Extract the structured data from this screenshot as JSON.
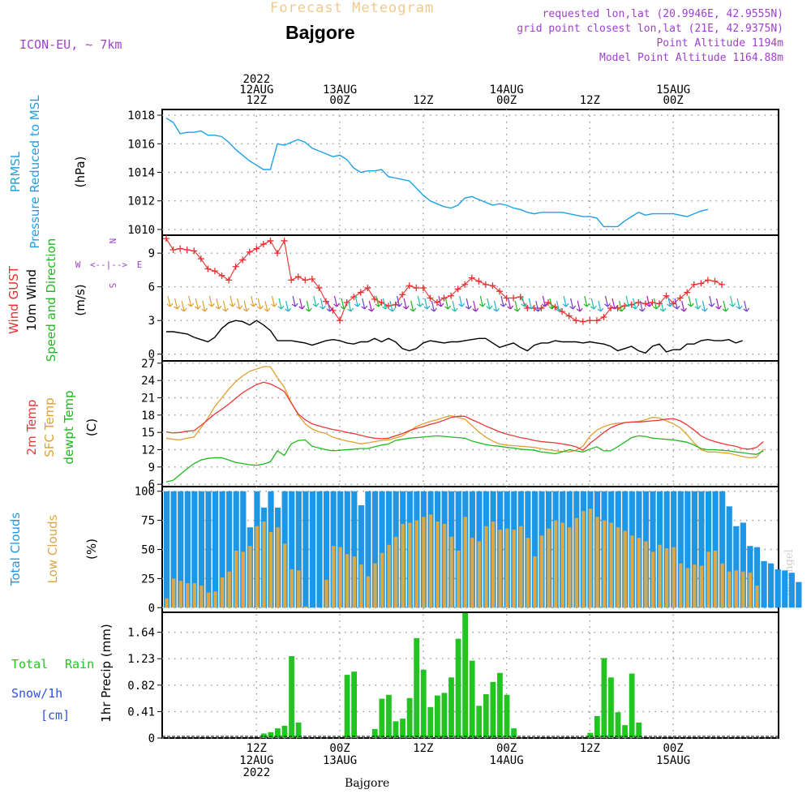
{
  "header": {
    "title": "Forecast Meteogram",
    "location": "Bajgore",
    "model": "ICON-EU, ~ 7km",
    "requested": "requested lon,lat (20.9946E, 42.9555N)",
    "grid_point": "grid point closest lon,lat (21E, 42.9375N)",
    "point_alt": "Point Altitude 1194m",
    "model_alt": "Model Point Altitude 1164.88m",
    "footer_location": "Bajgore",
    "credit": "by Angel"
  },
  "colors": {
    "pressure": "#1ea0e6",
    "gust": "#e83030",
    "wind10m": "#000000",
    "temp2m": "#e83838",
    "sfc_temp": "#e0a030",
    "dewpoint": "#20b820",
    "total_clouds": "#1e96e6",
    "low_clouds": "#d9a84a",
    "rain": "#22c422",
    "title_faint": "#f2c98a",
    "purple": "#a040d0"
  },
  "time_axis": {
    "top_labels": [
      {
        "i": 13,
        "lines": [
          "2022",
          "12AUG",
          "12Z"
        ]
      },
      {
        "i": 25,
        "lines": [
          "13AUG",
          "00Z"
        ]
      },
      {
        "i": 37,
        "lines": [
          "12Z"
        ]
      },
      {
        "i": 49,
        "lines": [
          "14AUG",
          "00Z"
        ]
      },
      {
        "i": 61,
        "lines": [
          "12Z"
        ]
      },
      {
        "i": 73,
        "lines": [
          "15AUG",
          "00Z"
        ]
      }
    ],
    "bottom_labels": [
      {
        "i": 13,
        "lines": [
          "12Z",
          "12AUG",
          "2022"
        ]
      },
      {
        "i": 25,
        "lines": [
          "00Z",
          "13AUG"
        ]
      },
      {
        "i": 37,
        "lines": [
          "12Z"
        ]
      },
      {
        "i": 49,
        "lines": [
          "00Z",
          "14AUG"
        ]
      },
      {
        "i": 61,
        "lines": [
          "12Z"
        ]
      },
      {
        "i": 73,
        "lines": [
          "00Z",
          "15AUG"
        ]
      }
    ]
  },
  "panel_labels": {
    "pressure": [
      "PRMSL",
      "Pressure Reduced to MSL",
      "(hPa)"
    ],
    "wind": [
      "Wind GUST",
      "10m Wind",
      "Speed and Direction",
      "(m/s)"
    ],
    "temp": [
      "2m Temp",
      "SFC Temp",
      "dewpt Temp",
      "(C)"
    ],
    "clouds": [
      "Total Clouds",
      "Low Clouds",
      "(%)"
    ],
    "precip": [
      "Total",
      "Rain",
      "Snow/1h",
      "[cm]",
      "1hr Precip (mm)"
    ],
    "compass": [
      "N",
      "S",
      "W",
      "E",
      "<--|-->"
    ]
  },
  "chart_data": [
    {
      "type": "line",
      "name": "pressure",
      "ylabel": "(hPa)",
      "ylim": [
        1009.6,
        1018.4
      ],
      "yticks": [
        1010,
        1012,
        1014,
        1016,
        1018
      ],
      "series": [
        {
          "name": "PRMSL",
          "color": "#1ea0e6",
          "values": [
            1017.8,
            1017.5,
            1016.7,
            1016.8,
            1016.8,
            1016.9,
            1016.6,
            1016.6,
            1016.5,
            1016.1,
            1015.6,
            1015.2,
            1014.8,
            1014.5,
            1014.2,
            1014.2,
            1016.0,
            1015.9,
            1016.1,
            1016.3,
            1016.1,
            1015.7,
            1015.5,
            1015.3,
            1015.1,
            1015.2,
            1014.9,
            1014.3,
            1014.0,
            1014.1,
            1014.1,
            1014.2,
            1013.7,
            1013.6,
            1013.5,
            1013.4,
            1012.9,
            1012.4,
            1012.0,
            1011.8,
            1011.6,
            1011.5,
            1011.7,
            1012.2,
            1012.3,
            1012.1,
            1011.9,
            1011.7,
            1011.8,
            1011.7,
            1011.5,
            1011.4,
            1011.2,
            1011.1,
            1011.2,
            1011.2,
            1011.2,
            1011.2,
            1011.1,
            1011.0,
            1010.9,
            1010.9,
            1010.8,
            1010.2,
            1010.2,
            1010.2,
            1010.6,
            1010.9,
            1011.2,
            1011.0,
            1011.1,
            1011.1,
            1011.1,
            1011.1,
            1011.0,
            1010.9,
            1011.1,
            1011.3,
            1011.4
          ]
        }
      ]
    },
    {
      "type": "line",
      "name": "wind",
      "ylabel": "(m/s)",
      "ylim": [
        -0.6,
        10.6
      ],
      "yticks": [
        0,
        3,
        6,
        9
      ],
      "series": [
        {
          "name": "Wind GUST",
          "color": "#e83030",
          "marker": "+",
          "values": [
            10.3,
            9.3,
            9.4,
            9.3,
            9.2,
            8.5,
            7.6,
            7.4,
            7.0,
            6.6,
            7.8,
            8.4,
            9.1,
            9.4,
            9.8,
            10.1,
            9.0,
            10.1,
            6.6,
            6.9,
            6.6,
            6.7,
            5.9,
            4.7,
            3.9,
            3.0,
            4.6,
            5.1,
            5.5,
            5.9,
            4.9,
            4.6,
            4.3,
            4.4,
            5.3,
            6.1,
            5.9,
            5.9,
            5.0,
            4.6,
            5.0,
            5.2,
            5.8,
            6.2,
            6.8,
            6.5,
            6.2,
            6.1,
            5.6,
            5.0,
            5.0,
            5.1,
            4.1,
            4.1,
            4.1,
            4.6,
            4.2,
            3.8,
            3.4,
            3.0,
            2.9,
            3.0,
            3.0,
            3.3,
            4.1,
            4.1,
            4.3,
            4.4,
            4.6,
            4.5,
            4.6,
            4.5,
            5.2,
            4.5,
            5.0,
            5.5,
            6.2,
            6.3,
            6.6,
            6.5,
            6.2
          ]
        },
        {
          "name": "10m Wind",
          "color": "#000000",
          "values": [
            2.0,
            2.0,
            1.9,
            1.8,
            1.5,
            1.3,
            1.1,
            1.5,
            2.3,
            2.8,
            3.0,
            2.9,
            2.6,
            3.0,
            2.6,
            2.1,
            1.2,
            1.2,
            1.2,
            1.1,
            1.0,
            0.8,
            1.0,
            1.2,
            1.3,
            1.2,
            1.0,
            0.9,
            1.1,
            1.1,
            1.4,
            1.1,
            1.4,
            1.1,
            0.5,
            0.3,
            0.5,
            1.0,
            1.2,
            1.1,
            1.0,
            1.1,
            1.1,
            1.2,
            1.3,
            1.4,
            1.4,
            1.0,
            0.6,
            0.8,
            1.0,
            0.6,
            0.3,
            0.8,
            1.0,
            1.0,
            1.2,
            1.1,
            1.1,
            1.1,
            1.0,
            1.1,
            1.0,
            0.9,
            0.7,
            0.3,
            0.5,
            0.7,
            0.3,
            0.1,
            0.7,
            0.9,
            0.2,
            0.4,
            0.4,
            0.9,
            0.9,
            1.2,
            1.3,
            1.2,
            1.2,
            1.3,
            1.0,
            1.2
          ]
        }
      ]
    },
    {
      "type": "line",
      "name": "temperature",
      "ylabel": "(C)",
      "ylim": [
        5.6,
        27.4
      ],
      "yticks": [
        6,
        9,
        12,
        15,
        18,
        21,
        24,
        27
      ],
      "series": [
        {
          "name": "2m Temp",
          "color": "#e83838",
          "values": [
            15.1,
            14.9,
            15.0,
            15.2,
            15.3,
            16.2,
            17.2,
            18.2,
            19.0,
            19.9,
            20.9,
            21.9,
            22.6,
            23.3,
            23.7,
            23.4,
            22.8,
            22.1,
            20.1,
            18.2,
            17.2,
            16.5,
            16.1,
            15.8,
            15.5,
            15.3,
            15.0,
            14.8,
            14.5,
            14.2,
            14.0,
            13.9,
            14.0,
            14.4,
            14.8,
            15.3,
            15.7,
            16.0,
            16.4,
            16.7,
            17.1,
            17.6,
            17.8,
            17.8,
            17.2,
            16.7,
            16.1,
            15.6,
            15.1,
            14.7,
            14.4,
            14.1,
            13.9,
            13.6,
            13.4,
            13.3,
            13.2,
            13.0,
            12.8,
            12.5,
            11.9,
            13.1,
            14.0,
            15.0,
            15.8,
            16.3,
            16.7,
            16.8,
            16.8,
            16.9,
            17.0,
            17.1,
            17.3,
            17.4,
            17.0,
            16.3,
            15.4,
            14.4,
            13.8,
            13.4,
            13.1,
            12.8,
            12.6,
            12.2,
            12.1,
            12.4,
            13.4
          ]
        },
        {
          "name": "SFC Temp",
          "color": "#e0a030",
          "values": [
            14.0,
            13.8,
            13.7,
            14.0,
            14.2,
            15.8,
            17.5,
            19.5,
            21.0,
            22.5,
            23.8,
            24.8,
            25.6,
            26.0,
            26.4,
            26.4,
            24.5,
            22.8,
            20.2,
            18.0,
            16.5,
            15.6,
            15.1,
            14.8,
            14.2,
            13.8,
            13.5,
            13.3,
            13.0,
            13.2,
            13.4,
            13.6,
            13.7,
            14.0,
            14.4,
            15.2,
            16.0,
            16.5,
            16.9,
            17.2,
            17.6,
            17.9,
            17.6,
            17.3,
            16.2,
            15.1,
            14.2,
            13.5,
            13.0,
            12.8,
            12.7,
            12.6,
            12.5,
            12.4,
            12.2,
            12.0,
            11.8,
            11.7,
            11.6,
            11.9,
            12.6,
            14.3,
            15.4,
            16.0,
            16.4,
            16.6,
            16.7,
            16.8,
            16.9,
            17.2,
            17.6,
            17.5,
            17.0,
            16.5,
            15.8,
            14.6,
            13.2,
            12.0,
            11.6,
            11.6,
            11.5,
            11.4,
            11.1,
            10.8,
            10.6,
            10.7,
            12.1
          ]
        },
        {
          "name": "dewpt Temp",
          "color": "#20b820",
          "values": [
            6.4,
            6.7,
            7.7,
            8.7,
            9.6,
            10.2,
            10.5,
            10.6,
            10.6,
            10.2,
            9.8,
            9.6,
            9.4,
            9.3,
            9.5,
            9.9,
            11.8,
            11.0,
            13.0,
            13.6,
            13.7,
            12.6,
            12.3,
            12.0,
            11.8,
            11.9,
            12.0,
            12.1,
            12.2,
            12.2,
            12.5,
            12.8,
            13.0,
            13.6,
            13.8,
            14.0,
            14.1,
            14.2,
            14.3,
            14.4,
            14.3,
            14.2,
            14.1,
            14.0,
            13.5,
            13.2,
            12.9,
            12.7,
            12.6,
            12.4,
            12.3,
            12.1,
            12.0,
            11.9,
            11.6,
            11.5,
            11.3,
            11.6,
            12.0,
            11.8,
            11.6,
            12.1,
            12.5,
            11.8,
            11.8,
            12.5,
            13.3,
            14.1,
            14.4,
            14.3,
            14.0,
            13.9,
            13.8,
            13.7,
            13.5,
            13.3,
            12.8,
            12.2,
            12.0,
            12.0,
            11.9,
            11.8,
            11.6,
            11.5,
            11.3,
            11.2,
            11.8
          ]
        }
      ]
    },
    {
      "type": "bar",
      "name": "clouds",
      "ylabel": "(%)",
      "ylim": [
        -4,
        104
      ],
      "yticks": [
        0,
        25,
        50,
        75,
        100
      ],
      "series": [
        {
          "name": "Total Clouds",
          "color": "#1e96e6",
          "values": [
            100,
            100,
            100,
            100,
            100,
            100,
            100,
            100,
            100,
            100,
            100,
            100,
            69,
            100,
            86,
            100,
            86,
            100,
            100,
            100,
            100,
            100,
            100,
            100,
            100,
            100,
            100,
            100,
            88,
            100,
            100,
            100,
            100,
            100,
            100,
            100,
            100,
            100,
            100,
            100,
            100,
            100,
            100,
            100,
            100,
            100,
            100,
            100,
            100,
            100,
            100,
            100,
            100,
            100,
            100,
            100,
            100,
            100,
            100,
            100,
            100,
            100,
            100,
            100,
            100,
            100,
            100,
            100,
            100,
            100,
            100,
            100,
            100,
            100,
            100,
            100,
            100,
            100,
            100,
            100,
            100,
            87,
            70,
            73,
            53,
            52,
            40,
            38,
            33,
            32,
            30,
            22
          ]
        },
        {
          "name": "Low Clouds",
          "color": "#d9a84a",
          "values": [
            8,
            25,
            23,
            21,
            21,
            19,
            13,
            14,
            26,
            31,
            49,
            48,
            53,
            70,
            74,
            65,
            69,
            55,
            33,
            32,
            1,
            0,
            0,
            24,
            53,
            52,
            46,
            44,
            37,
            27,
            38,
            47,
            54,
            61,
            72,
            73,
            75,
            78,
            80,
            74,
            72,
            61,
            49,
            78,
            60,
            57,
            70,
            74,
            67,
            68,
            67,
            70,
            60,
            44,
            62,
            68,
            75,
            73,
            69,
            77,
            83,
            85,
            78,
            75,
            73,
            69,
            66,
            62,
            60,
            57,
            48,
            54,
            51,
            52,
            38,
            34,
            37,
            36,
            48,
            49,
            38,
            31,
            32,
            31,
            30,
            19
          ]
        }
      ]
    },
    {
      "type": "bar",
      "name": "precipitation",
      "ylabel": "1hr Precip (mm)",
      "ylim": [
        0,
        1.95
      ],
      "yticks": [
        0,
        0.41,
        0.82,
        1.23,
        1.64
      ],
      "series": [
        {
          "name": "Total Rain",
          "color": "#22c422",
          "values": [
            0,
            0,
            0,
            0,
            0,
            0,
            0,
            0,
            0,
            0,
            0,
            0,
            0,
            0,
            0.07,
            0.09,
            0.15,
            0.19,
            1.27,
            0.24,
            0,
            0,
            0,
            0,
            0,
            0,
            0.98,
            1.03,
            0,
            0,
            0.14,
            0.61,
            0.67,
            0.26,
            0.3,
            0.62,
            1.55,
            1.06,
            0.48,
            0.66,
            0.7,
            0.94,
            1.54,
            1.94,
            1.2,
            0.5,
            0.68,
            0.87,
            1.01,
            0.67,
            0.15,
            0,
            0,
            0,
            0,
            0,
            0,
            0,
            0,
            0,
            0,
            0.08,
            0.34,
            1.24,
            0.94,
            0.4,
            0.2,
            1.0,
            0.24,
            0,
            0,
            0,
            0,
            0,
            0,
            0,
            0,
            0,
            0,
            0
          ]
        }
      ]
    }
  ]
}
